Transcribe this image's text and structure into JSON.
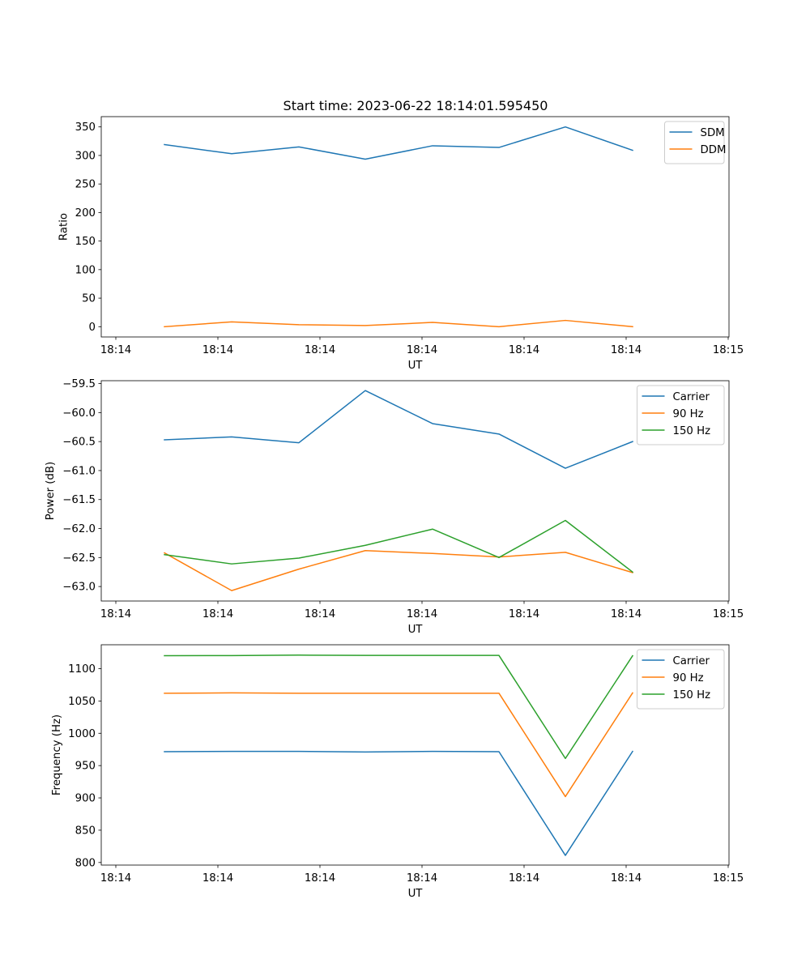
{
  "figure_title": "Start time: 2023-06-22 18:14:01.595450",
  "colors": {
    "C0": "#1f77b4",
    "C1": "#ff7f0e",
    "C2": "#2ca02c"
  },
  "chart_data": [
    {
      "type": "line",
      "title": "Start time: 2023-06-22 18:14:01.595450",
      "xlabel": "UT",
      "ylabel": "Ratio",
      "x_tick_labels": [
        "18:14",
        "18:14",
        "18:14",
        "18:14",
        "18:14",
        "18:14",
        "18:15"
      ],
      "y_ticks": [
        0,
        50,
        100,
        150,
        200,
        250,
        300,
        350
      ],
      "ylim": [
        -18,
        368
      ],
      "legend": "top-right",
      "series": [
        {
          "name": "SDM",
          "color": "#1f77b4",
          "values": [
            319,
            303,
            315,
            293.5,
            317,
            314,
            350,
            309
          ]
        },
        {
          "name": "DDM",
          "color": "#ff7f0e",
          "values": [
            0,
            8.5,
            3.5,
            2,
            7.5,
            0,
            11,
            0
          ]
        }
      ]
    },
    {
      "type": "line",
      "title": "",
      "xlabel": "UT",
      "ylabel": "Power (dB)",
      "x_tick_labels": [
        "18:14",
        "18:14",
        "18:14",
        "18:14",
        "18:14",
        "18:14",
        "18:15"
      ],
      "y_ticks": [
        -63.0,
        -62.5,
        -62.0,
        -61.5,
        -61.0,
        -60.5,
        -60.0,
        -59.5
      ],
      "y_tick_labels": [
        "−63.0",
        "−62.5",
        "−62.0",
        "−61.5",
        "−61.0",
        "−60.5",
        "−60.0",
        "−59.5"
      ],
      "ylim": [
        -63.25,
        -59.45
      ],
      "legend": "top-right",
      "series": [
        {
          "name": "Carrier",
          "color": "#1f77b4",
          "values": [
            -60.47,
            -60.42,
            -60.52,
            -59.62,
            -60.19,
            -60.37,
            -60.96,
            -60.5
          ]
        },
        {
          "name": "90 Hz",
          "color": "#ff7f0e",
          "values": [
            -62.42,
            -63.07,
            -62.7,
            -62.38,
            -62.43,
            -62.49,
            -62.41,
            -62.76
          ]
        },
        {
          "name": "150 Hz",
          "color": "#2ca02c",
          "values": [
            -62.45,
            -62.61,
            -62.51,
            -62.29,
            -62.01,
            -62.5,
            -61.86,
            -62.75
          ]
        }
      ]
    },
    {
      "type": "line",
      "title": "",
      "xlabel": "UT",
      "ylabel": "Frequency (Hz)",
      "x_tick_labels": [
        "18:14",
        "18:14",
        "18:14",
        "18:14",
        "18:14",
        "18:14",
        "18:15"
      ],
      "y_ticks": [
        800,
        850,
        900,
        950,
        1000,
        1050,
        1100
      ],
      "ylim": [
        796,
        1137
      ],
      "legend": "top-right",
      "series": [
        {
          "name": "Carrier",
          "color": "#1f77b4",
          "values": [
            971.5,
            972,
            972,
            971,
            972,
            971.5,
            811,
            972
          ]
        },
        {
          "name": "90 Hz",
          "color": "#ff7f0e",
          "values": [
            1062,
            1062.5,
            1062,
            1062,
            1062,
            1062,
            902,
            1062.5
          ]
        },
        {
          "name": "150 Hz",
          "color": "#2ca02c",
          "values": [
            1120,
            1120.3,
            1121,
            1120.5,
            1120.5,
            1120.5,
            961,
            1120
          ]
        }
      ]
    }
  ]
}
